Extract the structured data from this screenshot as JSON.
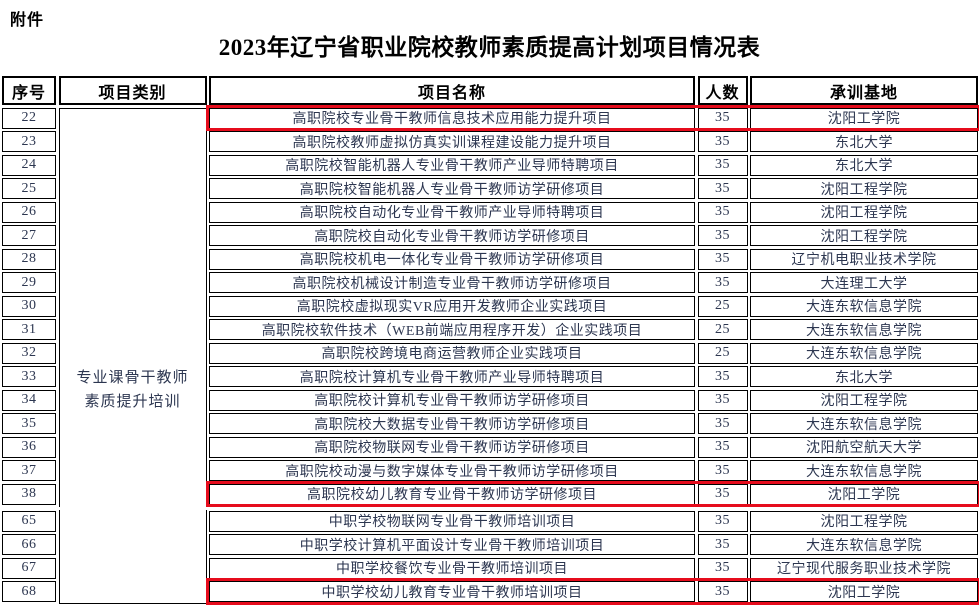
{
  "page": {
    "attachment_label": "附件",
    "title": "2023年辽宁省职业院校教师素质提高计划项目情况表"
  },
  "table": {
    "columns": {
      "seq": "序号",
      "category": "项目类别",
      "name": "项目名称",
      "count": "人数",
      "base": "承训基地"
    },
    "category_text": {
      "line1": "专业课骨干教师",
      "line2": "素质提升培训"
    },
    "highlight_color": "#e60c1c",
    "groups": [
      {
        "rows": [
          {
            "seq": "22",
            "name": "高职院校专业骨干教师信息技术应用能力提升项目",
            "count": "35",
            "base": "沈阳工学院",
            "highlight": true
          },
          {
            "seq": "23",
            "name": "高职院校教师虚拟仿真实训课程建设能力提升项目",
            "count": "35",
            "base": "东北大学",
            "highlight": false
          },
          {
            "seq": "24",
            "name": "高职院校智能机器人专业骨干教师产业导师特聘项目",
            "count": "35",
            "base": "东北大学",
            "highlight": false
          },
          {
            "seq": "25",
            "name": "高职院校智能机器人专业骨干教师访学研修项目",
            "count": "35",
            "base": "沈阳工程学院",
            "highlight": false
          },
          {
            "seq": "26",
            "name": "高职院校自动化专业骨干教师产业导师特聘项目",
            "count": "35",
            "base": "沈阳工程学院",
            "highlight": false
          },
          {
            "seq": "27",
            "name": "高职院校自动化专业骨干教师访学研修项目",
            "count": "35",
            "base": "沈阳工程学院",
            "highlight": false
          },
          {
            "seq": "28",
            "name": "高职院校机电一体化专业骨干教师访学研修项目",
            "count": "35",
            "base": "辽宁机电职业技术学院",
            "highlight": false
          },
          {
            "seq": "29",
            "name": "高职院校机械设计制造专业骨干教师访学研修项目",
            "count": "35",
            "base": "大连理工大学",
            "highlight": false
          },
          {
            "seq": "30",
            "name": "高职院校虚拟现实VR应用开发教师企业实践项目",
            "count": "25",
            "base": "大连东软信息学院",
            "highlight": false
          },
          {
            "seq": "31",
            "name": "高职院校软件技术（WEB前端应用程序开发）企业实践项目",
            "count": "25",
            "base": "大连东软信息学院",
            "highlight": false
          },
          {
            "seq": "32",
            "name": "高职院校跨境电商运营教师企业实践项目",
            "count": "25",
            "base": "大连东软信息学院",
            "highlight": false
          },
          {
            "seq": "33",
            "name": "高职院校计算机专业骨干教师产业导师特聘项目",
            "count": "35",
            "base": "东北大学",
            "highlight": false
          },
          {
            "seq": "34",
            "name": "高职院校计算机专业骨干教师访学研修项目",
            "count": "35",
            "base": "沈阳工程学院",
            "highlight": false
          },
          {
            "seq": "35",
            "name": "高职院校大数据专业骨干教师访学研修项目",
            "count": "35",
            "base": "大连东软信息学院",
            "highlight": false
          },
          {
            "seq": "36",
            "name": "高职院校物联网专业骨干教师访学研修项目",
            "count": "35",
            "base": "沈阳航空航天大学",
            "highlight": false
          },
          {
            "seq": "37",
            "name": "高职院校动漫与数字媒体专业骨干教师访学研修项目",
            "count": "35",
            "base": "大连东软信息学院",
            "highlight": false
          },
          {
            "seq": "38",
            "name": "高职院校幼儿教育专业骨干教师访学研修项目",
            "count": "35",
            "base": "沈阳工学院",
            "highlight": true
          }
        ]
      },
      {
        "rows": [
          {
            "seq": "65",
            "name": "中职学校物联网专业骨干教师培训项目",
            "count": "35",
            "base": "沈阳工程学院",
            "highlight": false
          },
          {
            "seq": "66",
            "name": "中职学校计算机平面设计专业骨干教师培训项目",
            "count": "35",
            "base": "大连东软信息学院",
            "highlight": false
          },
          {
            "seq": "67",
            "name": "中职学校餐饮专业骨干教师培训项目",
            "count": "35",
            "base": "辽宁现代服务职业技术学院",
            "highlight": false
          },
          {
            "seq": "68",
            "name": "中职学校幼儿教育专业骨干教师培训项目",
            "count": "35",
            "base": "沈阳工学院",
            "highlight": true
          }
        ]
      }
    ]
  }
}
